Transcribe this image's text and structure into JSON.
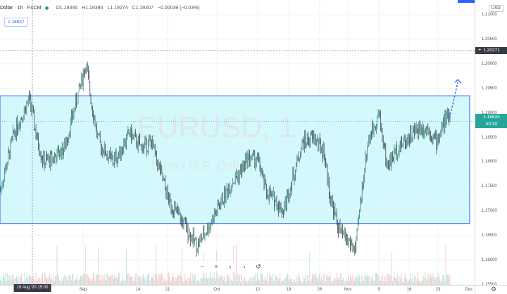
{
  "legend": {
    "name": "Dollar",
    "interval": "1h",
    "exchange": "FXCM",
    "open": "O1.19346",
    "high": "H1.19390",
    "low": "L1.19274",
    "close": "C1.19307",
    "change": "−0.00039 (−0.03%)"
  },
  "price_badge": "1.18837",
  "watermark": {
    "symbol": "EURUSD, 1",
    "description": "Euro / U.S. Dolla"
  },
  "price_axis": {
    "currency_button": "USD",
    "ticks": [
      "1.21000",
      "1.20500",
      "1.20000",
      "1.19500",
      "1.19000",
      "1.18500",
      "1.18000",
      "1.17500",
      "1.17000",
      "1.16500",
      "1.16000",
      "1.15500"
    ],
    "crosshair_price": "1.20271",
    "last_price": "1.18833",
    "countdown": "50:10"
  },
  "time_axis": {
    "labels": [
      "Sep",
      "14",
      "21",
      "Oct",
      "12",
      "19",
      "26",
      "Nov",
      "9",
      "16",
      "23",
      "Dec"
    ],
    "crosshair_date": "19 Aug '20  15:00"
  },
  "zoom_controls": {
    "zoom_out": "−",
    "zoom_in": "+",
    "scroll_left": "‹",
    "scroll_right": "›",
    "reset": "↺"
  },
  "colors": {
    "bull": "#26a69a",
    "bear": "#ef5350",
    "rectangle_fill": "#ccf7fa",
    "rectangle_border": "#2962ff",
    "projection": "#2962ff"
  },
  "chart_data": {
    "type": "candlestick",
    "symbol": "EURUSD",
    "interval": "1h",
    "ylim": [
      1.155,
      1.213
    ],
    "x_labels": [
      "Sep",
      "14",
      "21",
      "Oct",
      "12",
      "19",
      "26",
      "Nov",
      "9",
      "16",
      "23",
      "Dec"
    ],
    "price_path": [
      {
        "x": "Aug 17",
        "y": 1.174
      },
      {
        "x": "Aug 18",
        "y": 1.186
      },
      {
        "x": "Aug 19",
        "y": 1.193
      },
      {
        "x": "Aug 20",
        "y": 1.185
      },
      {
        "x": "Aug 21",
        "y": 1.18
      },
      {
        "x": "Aug 24",
        "y": 1.181
      },
      {
        "x": "Aug 26",
        "y": 1.183
      },
      {
        "x": "Aug 28",
        "y": 1.1905
      },
      {
        "x": "Sep 1",
        "y": 1.2
      },
      {
        "x": "Sep 2",
        "y": 1.192
      },
      {
        "x": "Sep 4",
        "y": 1.184
      },
      {
        "x": "Sep 8",
        "y": 1.18
      },
      {
        "x": "Sep 10",
        "y": 1.182
      },
      {
        "x": "Sep 14",
        "y": 1.186
      },
      {
        "x": "Sep 16",
        "y": 1.183
      },
      {
        "x": "Sep 18",
        "y": 1.184
      },
      {
        "x": "Sep 21",
        "y": 1.172
      },
      {
        "x": "Sep 23",
        "y": 1.168
      },
      {
        "x": "Sep 25",
        "y": 1.163
      },
      {
        "x": "Sep 28",
        "y": 1.166
      },
      {
        "x": "Oct 1",
        "y": 1.173
      },
      {
        "x": "Oct 5",
        "y": 1.176
      },
      {
        "x": "Oct 7",
        "y": 1.178
      },
      {
        "x": "Oct 9",
        "y": 1.181
      },
      {
        "x": "Oct 12",
        "y": 1.1805
      },
      {
        "x": "Oct 14",
        "y": 1.174
      },
      {
        "x": "Oct 16",
        "y": 1.172
      },
      {
        "x": "Oct 19",
        "y": 1.17
      },
      {
        "x": "Oct 21",
        "y": 1.184
      },
      {
        "x": "Oct 23",
        "y": 1.185
      },
      {
        "x": "Oct 26",
        "y": 1.182
      },
      {
        "x": "Oct 28",
        "y": 1.172
      },
      {
        "x": "Oct 30",
        "y": 1.166
      },
      {
        "x": "Nov 2",
        "y": 1.164
      },
      {
        "x": "Nov 4",
        "y": 1.162
      },
      {
        "x": "Nov 5",
        "y": 1.172
      },
      {
        "x": "Nov 6",
        "y": 1.184
      },
      {
        "x": "Nov 9",
        "y": 1.19
      },
      {
        "x": "Nov 11",
        "y": 1.179
      },
      {
        "x": "Nov 13",
        "y": 1.183
      },
      {
        "x": "Nov 16",
        "y": 1.185
      },
      {
        "x": "Nov 18",
        "y": 1.187
      },
      {
        "x": "Nov 20",
        "y": 1.187
      },
      {
        "x": "Nov 23",
        "y": 1.184
      },
      {
        "x": "Nov 24",
        "y": 1.188
      },
      {
        "x": "Nov 25",
        "y": 1.19
      }
    ],
    "rectangle": {
      "top": 1.1935,
      "bottom": 1.1675
    },
    "projection": {
      "from": 1.189,
      "to": 1.1965
    },
    "crosshair_price": 1.20271,
    "last_price": 1.18833,
    "volume": "shown as histogram at bottom"
  }
}
